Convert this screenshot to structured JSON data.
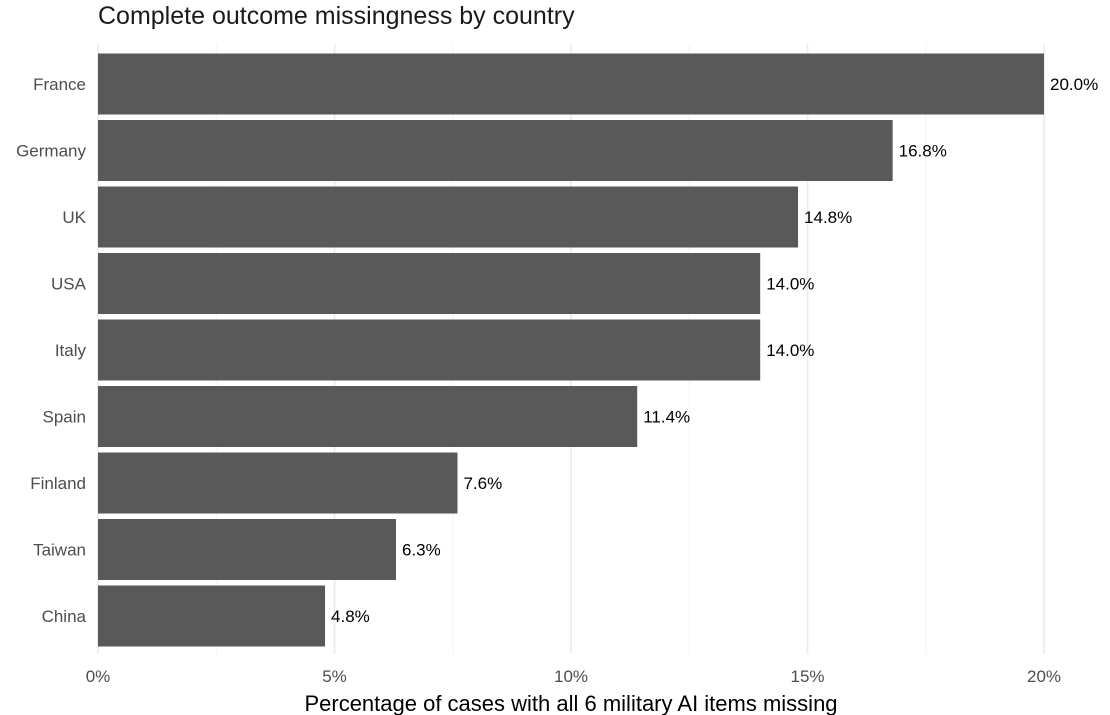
{
  "chart_data": {
    "type": "bar",
    "orientation": "horizontal",
    "title": "Complete outcome missingness by country",
    "xlabel": "Percentage of cases with all 6 military AI items missing",
    "ylabel": "",
    "categories": [
      "France",
      "Germany",
      "UK",
      "USA",
      "Italy",
      "Spain",
      "Finland",
      "Taiwan",
      "China"
    ],
    "values": [
      20.0,
      16.8,
      14.8,
      14.0,
      14.0,
      11.4,
      7.6,
      6.3,
      4.8
    ],
    "data_labels": [
      "20.0%",
      "16.8%",
      "14.8%",
      "14.0%",
      "14.0%",
      "11.4%",
      "7.6%",
      "6.3%",
      "4.8%"
    ],
    "xlim": [
      0,
      20
    ],
    "x_ticks": [
      0,
      5,
      10,
      15,
      20
    ],
    "x_tick_labels": [
      "0%",
      "5%",
      "10%",
      "15%",
      "20%"
    ],
    "grid": "vertical major gridlines",
    "legend": "none",
    "bar_color": "#595959",
    "grid_color": "#ebebeb"
  }
}
